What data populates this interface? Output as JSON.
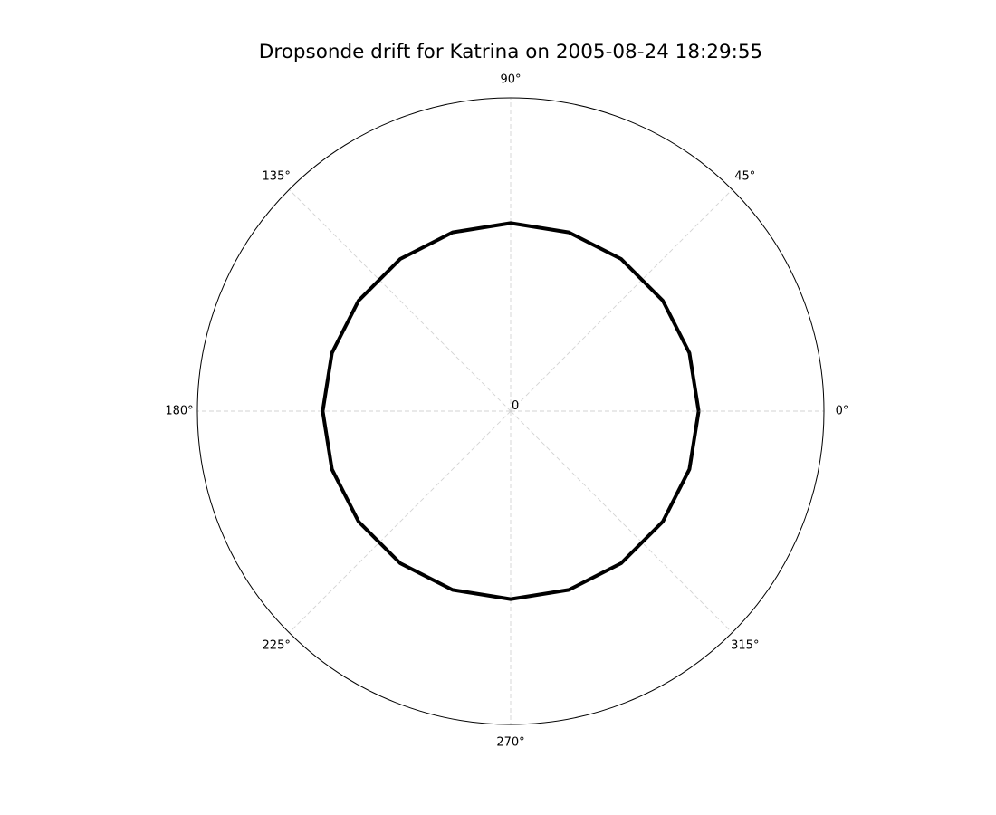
{
  "chart_data": {
    "type": "line",
    "projection": "polar",
    "title": "Dropsonde drift for Katrina on 2005-08-24 18:29:55",
    "theta_ticks": [
      0,
      45,
      90,
      135,
      180,
      225,
      270,
      315
    ],
    "theta_tick_labels": [
      "0°",
      "45°",
      "90°",
      "135°",
      "180°",
      "225°",
      "270°",
      "315°"
    ],
    "radial_tick_labels": [
      "0"
    ],
    "rlim": [
      0,
      1
    ],
    "grid": true,
    "series": [
      {
        "color": "#000000",
        "theta": [
          0,
          18,
          36,
          54,
          72,
          90,
          108,
          126,
          144,
          162,
          180,
          198,
          216,
          234,
          252,
          270,
          288,
          306,
          324,
          342,
          360
        ],
        "r": [
          0.6,
          0.6,
          0.6,
          0.6,
          0.6,
          0.6,
          0.6,
          0.6,
          0.6,
          0.6,
          0.6,
          0.6,
          0.6,
          0.6,
          0.6,
          0.6,
          0.6,
          0.6,
          0.6,
          0.6,
          0.6
        ]
      }
    ]
  }
}
